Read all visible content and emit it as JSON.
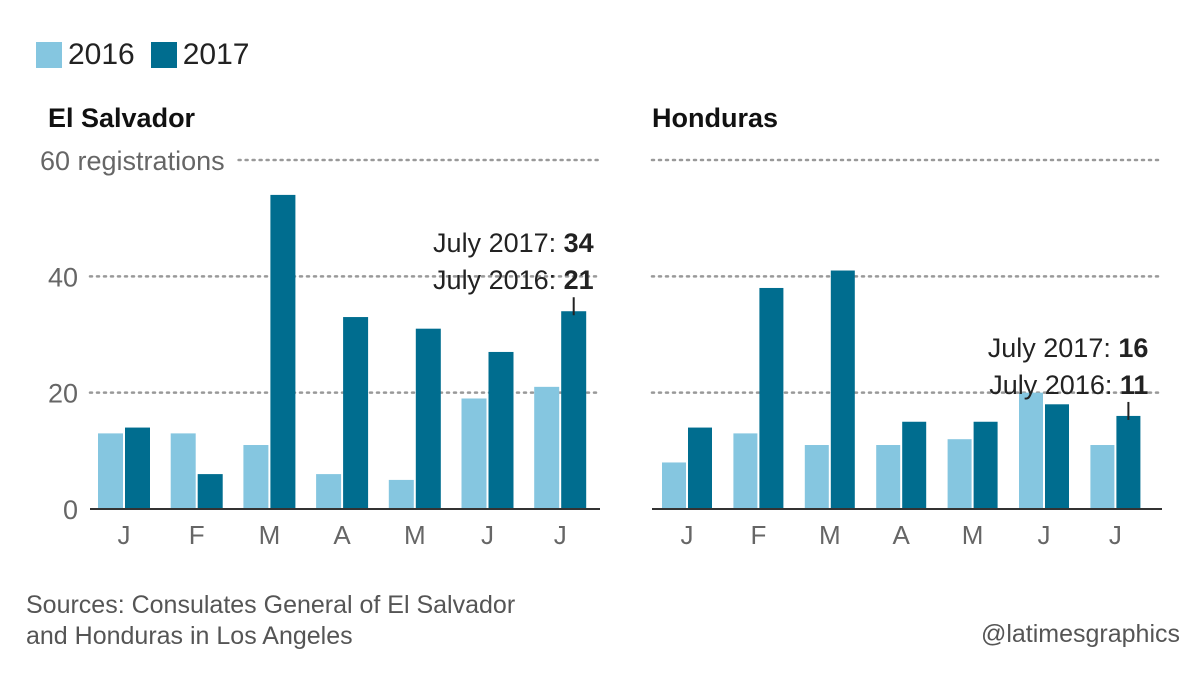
{
  "legend": [
    {
      "label": "2016",
      "color": "#85c6e0"
    },
    {
      "label": "2017",
      "color": "#006d8f"
    }
  ],
  "chart_data": [
    {
      "type": "bar",
      "title": "El Salvador",
      "categories": [
        "J",
        "F",
        "M",
        "A",
        "M",
        "J",
        "J"
      ],
      "series": [
        {
          "name": "2016",
          "values": [
            13,
            13,
            11,
            6,
            5,
            19,
            21
          ]
        },
        {
          "name": "2017",
          "values": [
            14,
            6,
            54,
            33,
            31,
            27,
            34
          ]
        }
      ],
      "ylim": [
        0,
        60
      ],
      "yticks": [
        0,
        20,
        40,
        60
      ],
      "ytick_labels": [
        "0",
        "20",
        "40",
        "60 registrations"
      ],
      "grid": true,
      "annotation": {
        "line1_label": "July 2017: ",
        "line1_value": "34",
        "line2_label": "July 2016: ",
        "line2_value": "21"
      }
    },
    {
      "type": "bar",
      "title": "Honduras",
      "categories": [
        "J",
        "F",
        "M",
        "A",
        "M",
        "J",
        "J"
      ],
      "series": [
        {
          "name": "2016",
          "values": [
            8,
            13,
            11,
            11,
            12,
            20,
            11
          ]
        },
        {
          "name": "2017",
          "values": [
            14,
            38,
            41,
            15,
            15,
            18,
            16
          ]
        }
      ],
      "ylim": [
        0,
        60
      ],
      "yticks": [
        0,
        20,
        40,
        60
      ],
      "ytick_labels": [
        "",
        "",
        "",
        ""
      ],
      "grid": true,
      "annotation": {
        "line1_label": "July 2017: ",
        "line1_value": "16",
        "line2_label": "July 2016: ",
        "line2_value": "11"
      }
    }
  ],
  "footer": {
    "source_line1": "Sources: Consulates General of El Salvador",
    "source_line2": "and Honduras in Los Angeles",
    "credit": "@latimesgraphics"
  }
}
